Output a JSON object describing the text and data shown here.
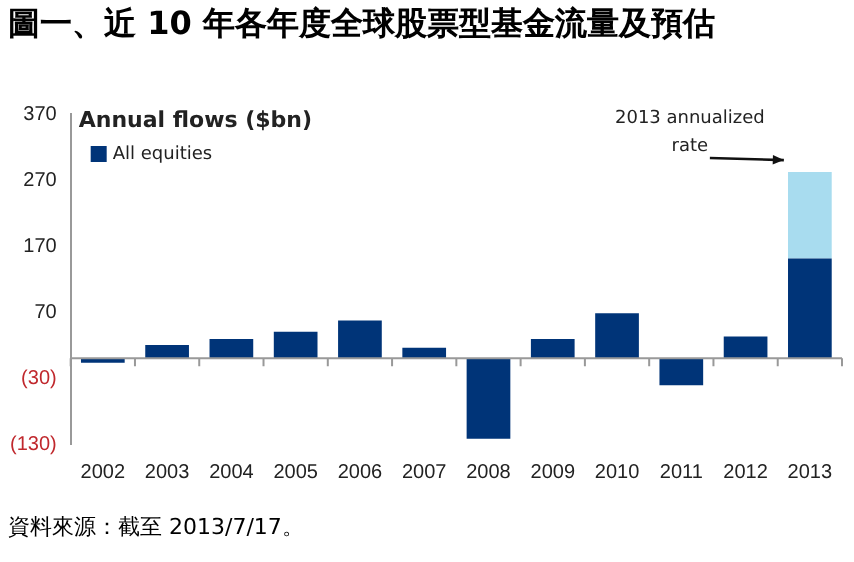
{
  "chart_data": {
    "type": "bar",
    "title": "圖一、近 10 年各年度全球股票型基金流量及預估",
    "ylabel": "Annual flows ($bn)",
    "categories": [
      "2002",
      "2003",
      "2004",
      "2005",
      "2006",
      "2007",
      "2008",
      "2009",
      "2010",
      "2011",
      "2012",
      "2013"
    ],
    "series": [
      {
        "name": "All equities",
        "color": "#003478",
        "values": [
          -7,
          20,
          29,
          40,
          57,
          16,
          -122,
          29,
          68,
          -41,
          33,
          151
        ]
      },
      {
        "color": "#a8dcef",
        "values": [
          null,
          null,
          null,
          null,
          null,
          null,
          null,
          null,
          null,
          null,
          null,
          131
        ]
      }
    ],
    "stacked": true,
    "ylim": [
      -130,
      370
    ],
    "yticks": [
      {
        "value": -130,
        "label": "(130)"
      },
      {
        "value": -30,
        "label": "(30)"
      },
      70,
      170,
      270,
      370
    ],
    "grid": false,
    "legend": "top left",
    "annotations": [
      {
        "text": "2013 annualized rate",
        "x": "2013",
        "y": 282
      },
      "資料來源：截至 2013/7/17。"
    ]
  }
}
